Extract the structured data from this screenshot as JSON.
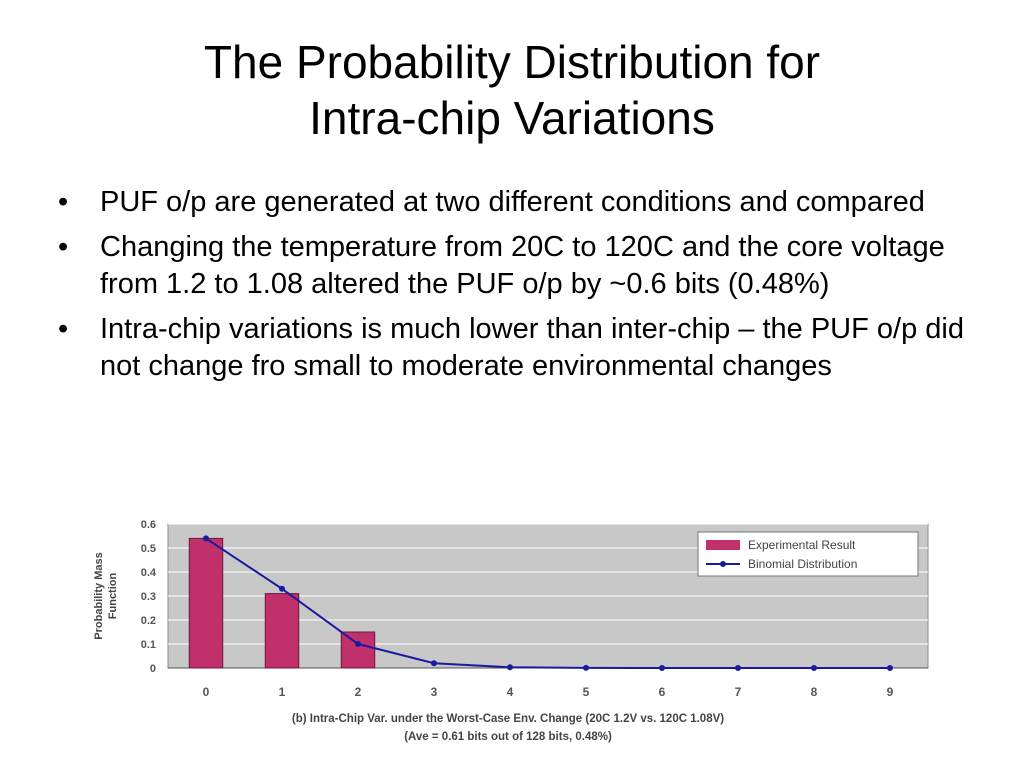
{
  "slide": {
    "title_line1": "The Probability Distribution for",
    "title_line2": "Intra-chip Variations",
    "bullets": [
      {
        "text": "PUF o/p are generated at two different conditions and compared"
      },
      {
        "text": "Changing the temperature from 20C to 120C and the core voltage from 1.2 to 1.08 altered the PUF o/p by ~0.6 bits (0.48%)"
      },
      {
        "text": "Intra-chip variations is much lower than inter-chip – the PUF o/p did not change fro small to moderate environmental changes"
      }
    ],
    "bullet_glyph": "•"
  },
  "chart_data": {
    "type": "bar",
    "categories": [
      "0",
      "1",
      "2",
      "3",
      "4",
      "5",
      "6",
      "7",
      "8",
      "9"
    ],
    "series": [
      {
        "name": "Experimental Result",
        "kind": "bar",
        "color": "#c0306a",
        "values": [
          0.54,
          0.31,
          0.15,
          0,
          0,
          0,
          0,
          0,
          0,
          0
        ]
      },
      {
        "name": "Binomial Distribution",
        "kind": "line",
        "color": "#1a1aa0",
        "values": [
          0.54,
          0.33,
          0.1,
          0.02,
          0.003,
          0.0003,
          0,
          0,
          0,
          0
        ]
      }
    ],
    "ylabel_line1": "Probability Mass",
    "ylabel_line2": "Function",
    "yticks": [
      "0",
      "0.1",
      "0.2",
      "0.3",
      "0.4",
      "0.5",
      "0.6"
    ],
    "ylim": [
      0,
      0.6
    ],
    "caption_line1": "(b) Intra-Chip Var. under the Worst-Case Env. Change (20C 1.2V vs. 120C 1.08V)",
    "caption_line2": "(Ave = 0.61 bits out of 128 bits, 0.48%)",
    "legend_position": "top-right",
    "plot_bg": "#c8c8c8",
    "grid": true
  }
}
